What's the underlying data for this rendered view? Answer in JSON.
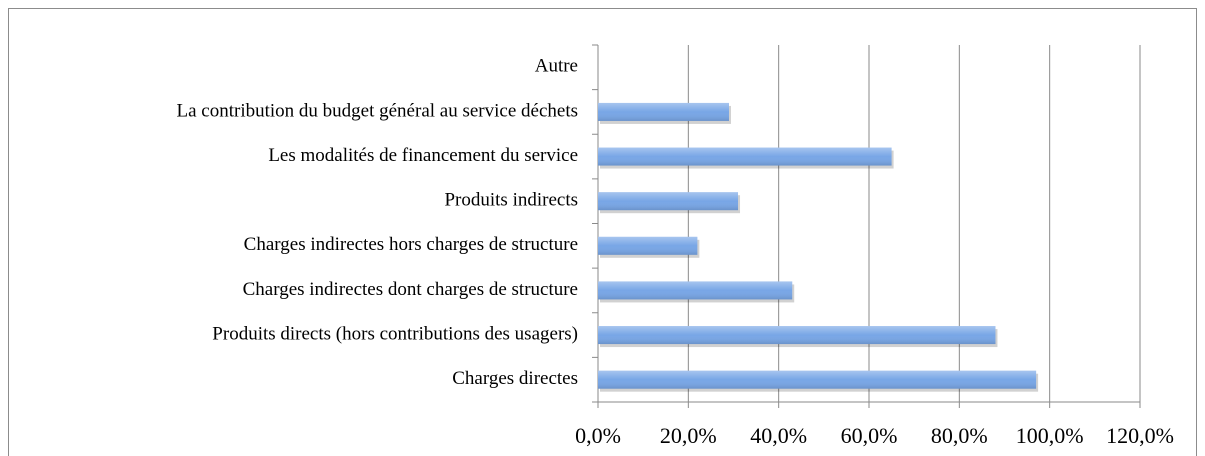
{
  "chart_data": {
    "type": "hbar",
    "categories": [
      "Autre",
      "La contribution du budget général au service déchets",
      "Les modalités de financement du service",
      "Produits indirects",
      "Charges indirectes hors charges de structure",
      "Charges indirectes dont charges de structure",
      "Produits directs (hors contributions des usagers)",
      "Charges directes"
    ],
    "values": [
      0,
      29,
      65,
      31,
      22,
      43,
      88,
      97
    ],
    "color": "#78a6e6",
    "xlim": [
      0,
      120
    ],
    "xticks": [
      {
        "value": 0,
        "label": "0,0%"
      },
      {
        "value": 20,
        "label": "20,0%"
      },
      {
        "value": 40,
        "label": "40,0%"
      },
      {
        "value": 60,
        "label": "60,0%"
      },
      {
        "value": 80,
        "label": "80,0%"
      },
      {
        "value": 100,
        "label": "100,0%"
      },
      {
        "value": 120,
        "label": "120,0%"
      }
    ],
    "grid": true
  }
}
